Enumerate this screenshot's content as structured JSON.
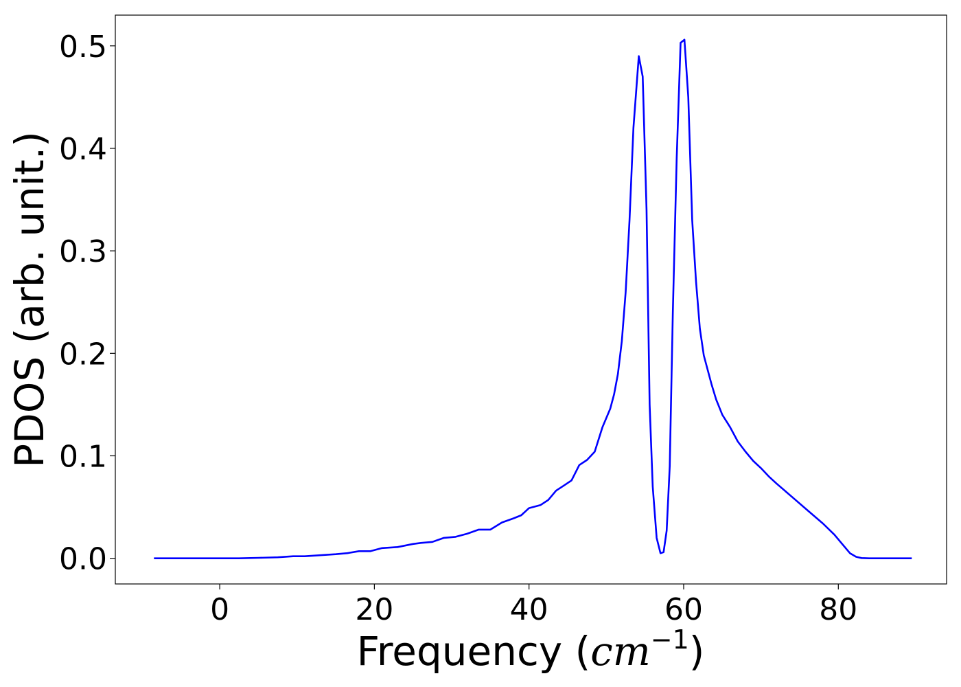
{
  "chart_data": {
    "type": "line",
    "title": "",
    "xlabel": "Frequency (cm⁻¹)",
    "xlabel_parts": {
      "prefix": "Frequency (",
      "unit": "cm",
      "exponent": "−1",
      "suffix": ")"
    },
    "ylabel": "PDOS (arb. unit.)",
    "xlim": [
      -13.5,
      94
    ],
    "ylim": [
      -0.025,
      0.53
    ],
    "grid": false,
    "legend": "none",
    "xticks": [
      0,
      20,
      40,
      60,
      80
    ],
    "xtick_labels": [
      "0",
      "20",
      "40",
      "60",
      "80"
    ],
    "yticks": [
      0.0,
      0.1,
      0.2,
      0.3,
      0.4,
      0.5
    ],
    "ytick_labels": [
      "0.0",
      "0.1",
      "0.2",
      "0.3",
      "0.4",
      "0.5"
    ],
    "series": [
      {
        "color": "#0000ff",
        "x": [
          -8.5,
          0,
          2.5,
          5,
          7.5,
          9.5,
          11,
          13,
          15,
          16.5,
          18,
          19.5,
          21,
          23,
          25,
          26,
          27.5,
          29,
          30.5,
          32,
          33.5,
          35,
          36.5,
          38,
          39,
          40,
          41.5,
          42.5,
          43.5,
          44.5,
          45.5,
          46.5,
          47.5,
          48.5,
          49.5,
          50.5,
          51,
          51.5,
          52,
          52.5,
          53,
          53.5,
          54.2,
          54.7,
          55.2,
          55.6,
          56,
          56.5,
          57,
          57.4,
          57.8,
          58.2,
          58.6,
          59.1,
          59.6,
          60.1,
          60.6,
          61.1,
          61.6,
          62.1,
          62.6,
          63.1,
          63.6,
          64.2,
          65,
          66,
          67,
          68,
          69,
          70,
          71,
          72,
          74,
          76,
          78,
          79.5,
          80.5,
          81.5,
          82.3,
          83,
          84,
          86,
          89.5
        ],
        "values": [
          0.0,
          0.0,
          0.0,
          0.0005,
          0.001,
          0.002,
          0.002,
          0.003,
          0.004,
          0.005,
          0.007,
          0.007,
          0.01,
          0.011,
          0.014,
          0.015,
          0.016,
          0.02,
          0.021,
          0.024,
          0.028,
          0.028,
          0.035,
          0.039,
          0.042,
          0.049,
          0.052,
          0.057,
          0.066,
          0.071,
          0.076,
          0.091,
          0.096,
          0.104,
          0.128,
          0.146,
          0.16,
          0.18,
          0.212,
          0.26,
          0.33,
          0.42,
          0.49,
          0.47,
          0.34,
          0.15,
          0.07,
          0.02,
          0.005,
          0.006,
          0.027,
          0.09,
          0.24,
          0.39,
          0.503,
          0.506,
          0.45,
          0.33,
          0.27,
          0.224,
          0.198,
          0.184,
          0.17,
          0.155,
          0.14,
          0.128,
          0.114,
          0.104,
          0.095,
          0.088,
          0.08,
          0.073,
          0.06,
          0.047,
          0.034,
          0.023,
          0.014,
          0.005,
          0.0015,
          0.0003,
          0.0,
          0.0,
          0.0
        ]
      }
    ]
  }
}
